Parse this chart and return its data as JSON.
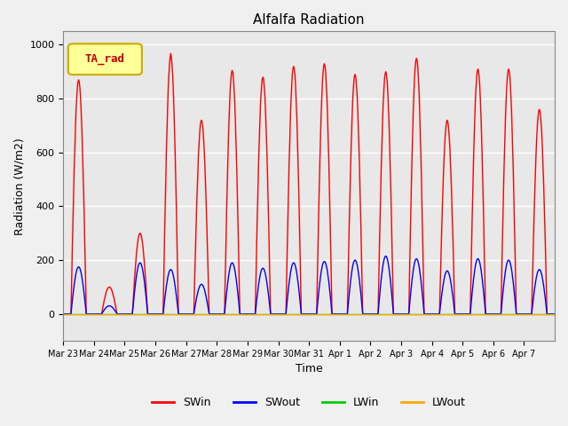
{
  "title": "Alfalfa Radiation",
  "ylabel": "Radiation (W/m2)",
  "xlabel": "Time",
  "ylim": [
    -100,
    1050
  ],
  "legend_label": "TA_rad",
  "x_tick_labels": [
    "Mar 23",
    "Mar 24",
    "Mar 25",
    "Mar 26",
    "Mar 27",
    "Mar 28",
    "Mar 29",
    "Mar 30",
    "Mar 31",
    "Apr 1",
    "Apr 2",
    "Apr 3",
    "Apr 4",
    "Apr 5",
    "Apr 6",
    "Apr 7"
  ],
  "series_colors": {
    "SWin": "#FF0000",
    "SWout": "#0000FF",
    "LWin": "#00CC00",
    "LWout": "#FFA500"
  },
  "fig_facecolor": "#F0F0F0",
  "ax_facecolor": "#E8E8E8",
  "num_days": 16,
  "pts_per_day": 48,
  "swin_day_peaks": [
    870,
    100,
    300,
    960,
    720,
    905,
    880,
    920,
    930,
    890,
    900,
    950,
    720,
    910,
    910,
    760
  ],
  "swout_day_peaks": [
    175,
    30,
    190,
    165,
    110,
    190,
    170,
    190,
    195,
    200,
    215,
    205,
    160,
    205,
    200,
    165
  ]
}
